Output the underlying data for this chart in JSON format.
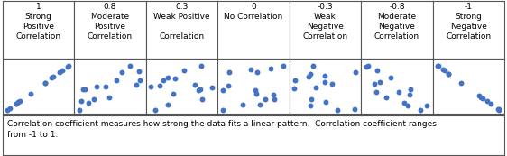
{
  "panels": [
    {
      "label": "1\nStrong\nPositive\nCorrelation",
      "correlation": 1.0
    },
    {
      "label": "0.8\nModerate\nPositive\nCorrelation",
      "correlation": 0.8
    },
    {
      "label": "0.3\nWeak Positive\n\nCorrelation",
      "correlation": 0.3
    },
    {
      "label": "0\nNo Correlation",
      "correlation": 0.0
    },
    {
      "label": "-0.3\nWeak\nNegative\nCorrelation",
      "correlation": -0.3
    },
    {
      "label": "-0.8\nModerate\nNegative\nCorrelation",
      "correlation": -0.8
    },
    {
      "label": "-1\nStrong\nNegative\nCorrelation",
      "correlation": -1.0
    }
  ],
  "dot_color": "#4472C4",
  "dot_size": 18,
  "background_color": "#ffffff",
  "border_color": "#555555",
  "caption": "Correlation coefficient measures how strong the data fits a linear pattern.  Correlation coefficient ranges\nfrom -1 to 1.",
  "caption_fontsize": 6.5,
  "label_fontsize": 6.5,
  "n_points": 15
}
